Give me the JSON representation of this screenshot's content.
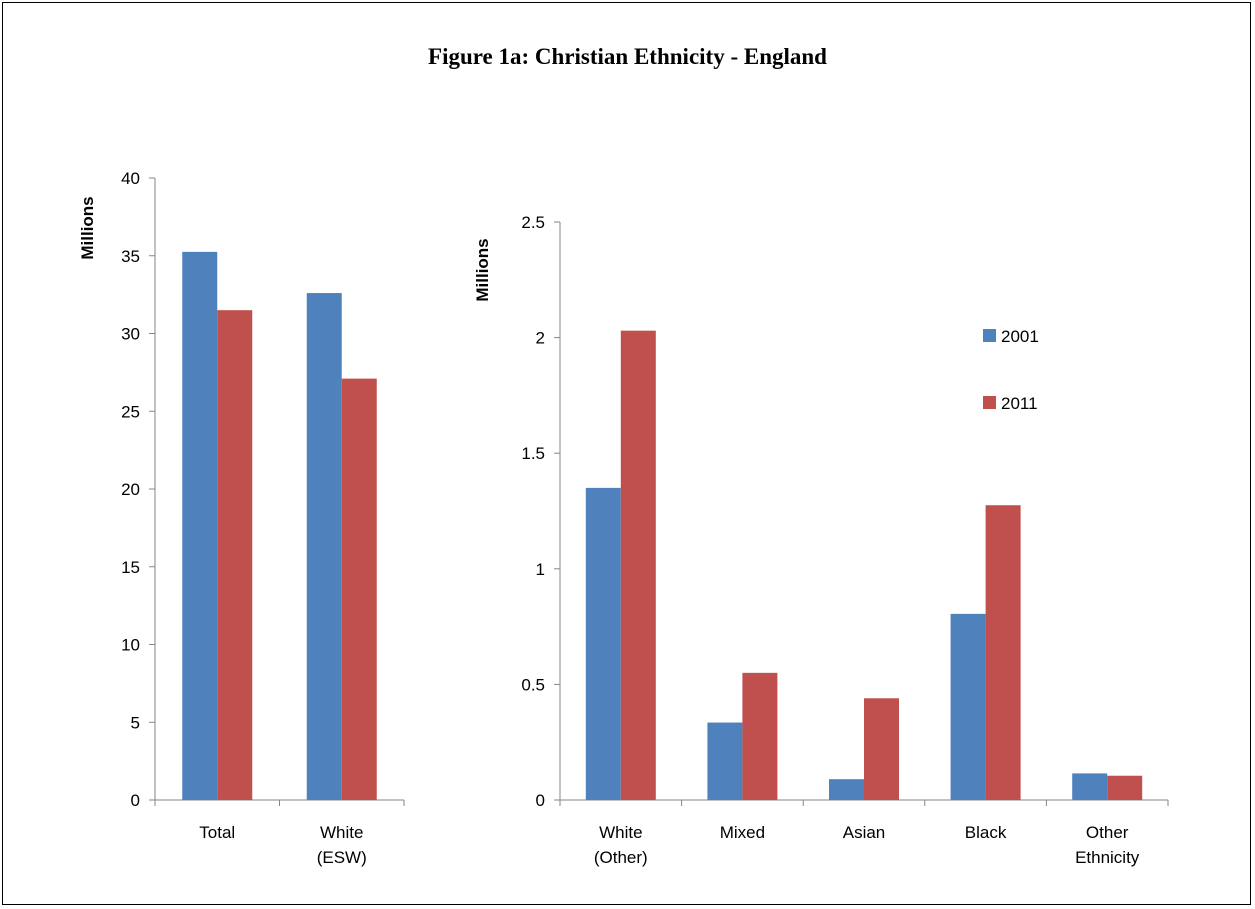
{
  "title": "Figure 1a: Christian Ethnicity - England",
  "colors": {
    "2001": "#4f81bd",
    "2011": "#c0504d",
    "axis": "#868686"
  },
  "chart_data": [
    {
      "type": "bar",
      "categories": [
        [
          "Total"
        ],
        [
          "White",
          "(ESW)"
        ]
      ],
      "series": [
        {
          "name": "2001",
          "values": [
            35.25,
            32.6
          ]
        },
        {
          "name": "2011",
          "values": [
            31.5,
            27.1
          ]
        }
      ],
      "ylabel": "Millions",
      "ylim": [
        0,
        40
      ],
      "yticks": [
        "0",
        "5",
        "10",
        "15",
        "20",
        "25",
        "30",
        "35",
        "40"
      ],
      "ytick_values": [
        0,
        5,
        10,
        15,
        20,
        25,
        30,
        35,
        40
      ],
      "grid": false
    },
    {
      "type": "bar",
      "categories": [
        [
          "White",
          "(Other)"
        ],
        [
          "Mixed"
        ],
        [
          "Asian"
        ],
        [
          "Black"
        ],
        [
          "Other",
          "Ethnicity"
        ]
      ],
      "series": [
        {
          "name": "2001",
          "values": [
            1.35,
            0.335,
            0.09,
            0.805,
            0.115
          ]
        },
        {
          "name": "2011",
          "values": [
            2.03,
            0.55,
            0.44,
            1.275,
            0.105
          ]
        }
      ],
      "ylabel": "Millions",
      "ylim": [
        0,
        2.5
      ],
      "yticks": [
        "0",
        "0.5",
        "1",
        "1.5",
        "2",
        "2.5"
      ],
      "ytick_values": [
        0,
        0.5,
        1,
        1.5,
        2,
        2.5
      ],
      "legend": {
        "placement": "right",
        "entries": [
          "2001",
          "2011"
        ]
      },
      "grid": false
    }
  ]
}
